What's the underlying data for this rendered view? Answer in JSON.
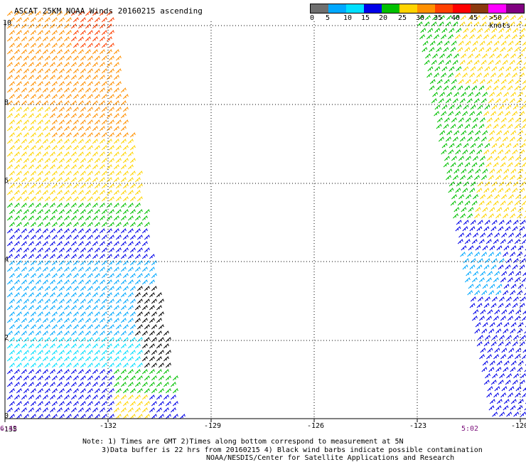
{
  "title": "ASCAT 25KM NOAA Winds 20160215 ascending",
  "legend": {
    "colors": [
      "#6f6f6f",
      "#00a8ff",
      "#00dfff",
      "#0000e8",
      "#00c000",
      "#ffd400",
      "#ff9000",
      "#ff4000",
      "#ff0000",
      "#8b3a0f",
      "#ff00ff",
      "#800080"
    ],
    "labels": [
      "0",
      "5",
      "10",
      "15",
      "20",
      "25",
      "30",
      "35",
      "40",
      "45",
      ">50 knots"
    ]
  },
  "axes": {
    "x_ticks": [
      "-135",
      "-132",
      "-129",
      "-126",
      "-123",
      "-120"
    ],
    "y_ticks": [
      "0",
      "2",
      "4",
      "6",
      "8",
      "10"
    ]
  },
  "times": {
    "left": "6:42",
    "right": "5:02"
  },
  "notes": {
    "line1": "Note: 1) Times are GMT 2)Times along bottom correspond to measurement at 5N",
    "line2": "3)Data buffer is 22 hrs from 20160215 4) Black wind barbs indicate possible contamination",
    "line3": "NOAA/NESDIS/Center for Satellite Applications and Research"
  }
}
